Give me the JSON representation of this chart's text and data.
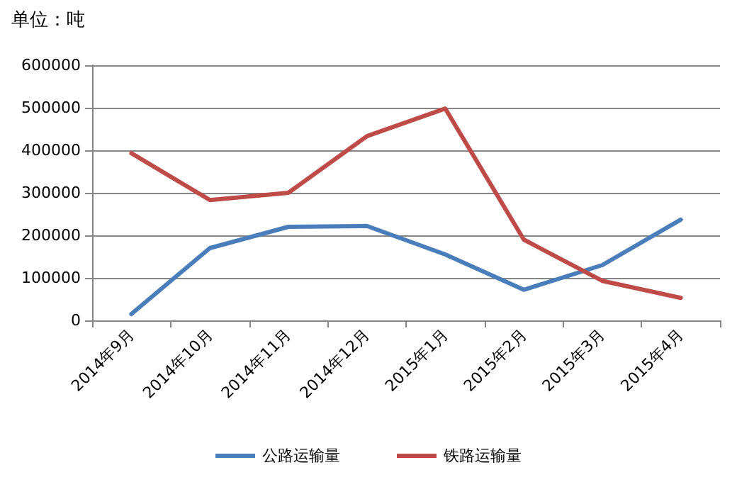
{
  "chart_data": {
    "type": "line",
    "ylabel": "单位：吨",
    "categories": [
      "2014年9月",
      "2014年10月",
      "2014年11月",
      "2014年12月",
      "2015年1月",
      "2015年2月",
      "2015年3月",
      "2015年4月"
    ],
    "series": [
      {
        "name": "公路运输量",
        "color": "#4a7ebb",
        "values": [
          15000,
          170000,
          220000,
          222000,
          155000,
          72000,
          130000,
          237000
        ]
      },
      {
        "name": "铁路运输量",
        "color": "#be4b48",
        "values": [
          393000,
          283000,
          300000,
          433000,
          498000,
          190000,
          93000,
          53000
        ]
      }
    ],
    "ylim": [
      0,
      600000
    ],
    "yticks": [
      0,
      100000,
      200000,
      300000,
      400000,
      500000,
      600000
    ],
    "grid": "y",
    "legend": "bottom",
    "marker": "none",
    "line_style": "solid"
  }
}
